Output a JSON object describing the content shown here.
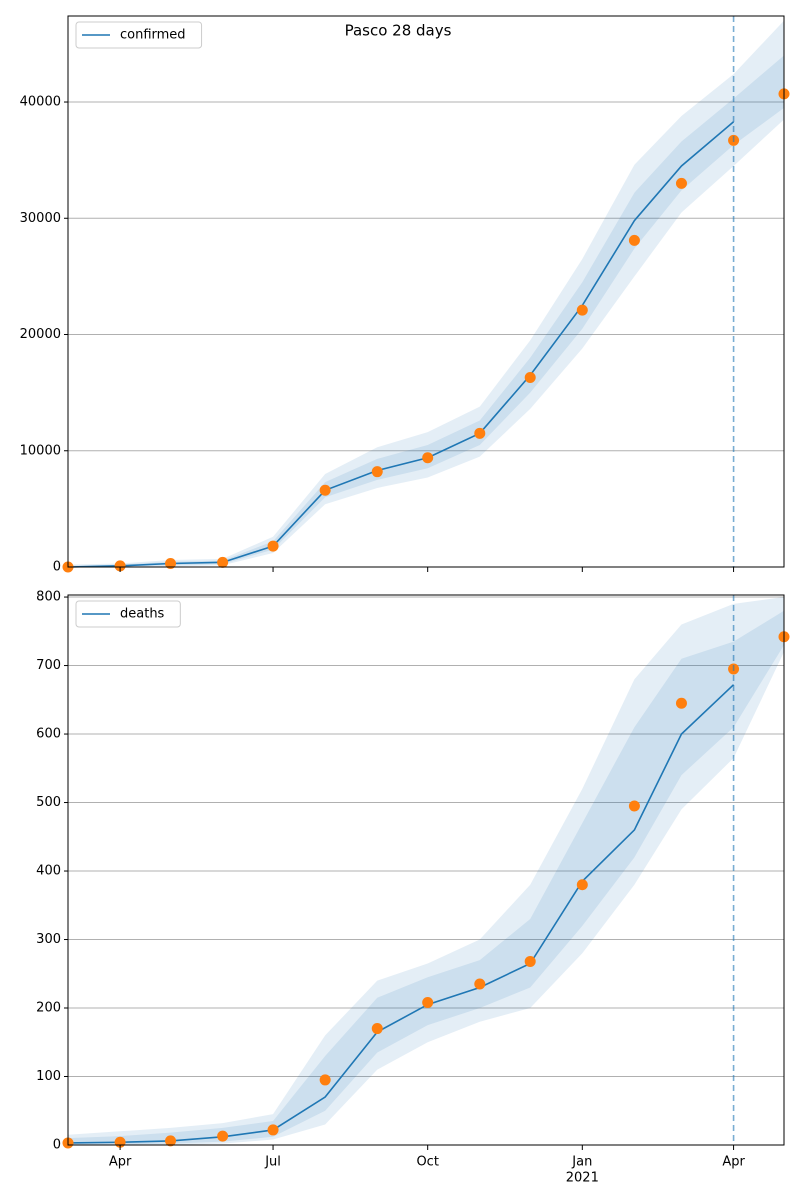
{
  "chart_data": [
    {
      "type": "line",
      "title": "Pasco 28 days",
      "x": [
        "2020-03",
        "2020-04",
        "2020-05",
        "2020-06",
        "2020-07",
        "2020-08",
        "2020-09",
        "2020-10",
        "2020-11",
        "2020-12",
        "2021-01",
        "2021-02",
        "2021-03",
        "2021-04",
        "2021-05"
      ],
      "series": [
        {
          "name": "confirmed",
          "color": "#1f77b4",
          "values": [
            0,
            100,
            300,
            400,
            1800,
            6600,
            8300,
            9400,
            11500,
            16500,
            22500,
            29800,
            34500,
            38300,
            null
          ]
        }
      ],
      "observed": {
        "color": "#ff7f0e",
        "values": [
          0,
          100,
          300,
          400,
          1800,
          6600,
          8200,
          9400,
          11500,
          16300,
          22100,
          28100,
          33000,
          36700,
          40700
        ]
      },
      "bands": [
        {
          "upper": [
            200,
            300,
            600,
            700,
            2600,
            8000,
            10300,
            11600,
            13800,
            19500,
            26500,
            34600,
            38800,
            42400,
            47000
          ],
          "lower": [
            0,
            0,
            50,
            150,
            1200,
            5400,
            6800,
            7700,
            9500,
            13600,
            18800,
            25000,
            30500,
            34500,
            38500
          ]
        },
        {
          "upper": [
            100,
            200,
            450,
            550,
            2200,
            7300,
            9300,
            10500,
            12600,
            18000,
            24500,
            32200,
            36600,
            40300,
            44000
          ],
          "lower": [
            0,
            50,
            150,
            250,
            1500,
            6000,
            7500,
            8500,
            10500,
            15000,
            20500,
            27400,
            32400,
            36300,
            39500
          ]
        }
      ],
      "band_color": "#1f77b4",
      "vline": "2021-04",
      "xlim": [
        "2020-03",
        "2021-05"
      ],
      "xticks": [
        {
          "value": "2020-04",
          "label": "Apr"
        },
        {
          "value": "2020-07",
          "label": "Jul"
        },
        {
          "value": "2020-10",
          "label": "Oct"
        },
        {
          "value": "2021-01",
          "label": "Jan",
          "sublabel": "2021"
        },
        {
          "value": "2021-04",
          "label": "Apr"
        }
      ],
      "show_xtick_labels": false,
      "ylim": [
        0,
        47400
      ],
      "yticks": [
        0,
        10000,
        20000,
        30000,
        40000
      ],
      "grid": true,
      "legend": "upper left"
    },
    {
      "type": "line",
      "x": [
        "2020-03",
        "2020-04",
        "2020-05",
        "2020-06",
        "2020-07",
        "2020-08",
        "2020-09",
        "2020-10",
        "2020-11",
        "2020-12",
        "2021-01",
        "2021-02",
        "2021-03",
        "2021-04",
        "2021-05"
      ],
      "series": [
        {
          "name": "deaths",
          "color": "#1f77b4",
          "values": [
            3,
            4,
            6,
            12,
            22,
            70,
            165,
            205,
            230,
            265,
            385,
            460,
            600,
            672,
            null
          ]
        }
      ],
      "observed": {
        "color": "#ff7f0e",
        "values": [
          3,
          4,
          6,
          13,
          22,
          95,
          170,
          208,
          235,
          268,
          380,
          495,
          645,
          695,
          742
        ]
      },
      "bands": [
        {
          "upper": [
            15,
            20,
            25,
            32,
            45,
            160,
            240,
            265,
            300,
            380,
            520,
            680,
            760,
            790,
            800
          ],
          "lower": [
            0,
            0,
            0,
            2,
            8,
            30,
            110,
            150,
            180,
            200,
            280,
            380,
            490,
            565,
            720
          ]
        },
        {
          "upper": [
            10,
            13,
            18,
            25,
            35,
            130,
            215,
            245,
            270,
            330,
            470,
            610,
            710,
            735,
            780
          ],
          "lower": [
            0,
            1,
            2,
            5,
            12,
            50,
            135,
            175,
            200,
            230,
            320,
            420,
            540,
            610,
            730
          ]
        }
      ],
      "band_color": "#1f77b4",
      "vline": "2021-04",
      "xlim": [
        "2020-03",
        "2021-05"
      ],
      "xticks": [
        {
          "value": "2020-04",
          "label": "Apr"
        },
        {
          "value": "2020-07",
          "label": "Jul"
        },
        {
          "value": "2020-10",
          "label": "Oct"
        },
        {
          "value": "2021-01",
          "label": "Jan",
          "sublabel": "2021"
        },
        {
          "value": "2021-04",
          "label": "Apr"
        }
      ],
      "show_xtick_labels": true,
      "ylim": [
        0,
        803
      ],
      "yticks": [
        0,
        100,
        200,
        300,
        400,
        500,
        600,
        700,
        800
      ],
      "grid": true,
      "legend": "upper left"
    }
  ]
}
